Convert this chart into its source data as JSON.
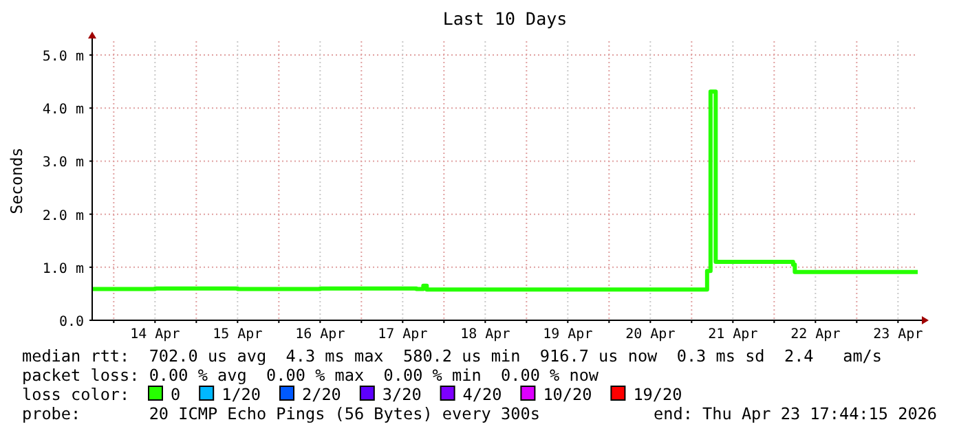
{
  "chart_data": {
    "type": "step",
    "title": "Last 10 Days",
    "ylabel": "Seconds",
    "legend_title": "loss color:",
    "legend": "bottom",
    "grid": true,
    "xlim": [
      "2026-04-13T17:44",
      "2026-04-23T17:44"
    ],
    "xticks": [
      {
        "value": "2026-04-14T00:00",
        "label": null
      },
      {
        "value": "2026-04-14T12:00",
        "label": "14 Apr"
      },
      {
        "value": "2026-04-15T00:00",
        "label": null
      },
      {
        "value": "2026-04-15T12:00",
        "label": "15 Apr"
      },
      {
        "value": "2026-04-16T00:00",
        "label": null
      },
      {
        "value": "2026-04-16T12:00",
        "label": "16 Apr"
      },
      {
        "value": "2026-04-17T00:00",
        "label": null
      },
      {
        "value": "2026-04-17T12:00",
        "label": "17 Apr"
      },
      {
        "value": "2026-04-18T00:00",
        "label": null
      },
      {
        "value": "2026-04-18T12:00",
        "label": "18 Apr"
      },
      {
        "value": "2026-04-19T00:00",
        "label": null
      },
      {
        "value": "2026-04-19T12:00",
        "label": "19 Apr"
      },
      {
        "value": "2026-04-20T00:00",
        "label": null
      },
      {
        "value": "2026-04-20T12:00",
        "label": "20 Apr"
      },
      {
        "value": "2026-04-21T00:00",
        "label": null
      },
      {
        "value": "2026-04-21T12:00",
        "label": "21 Apr"
      },
      {
        "value": "2026-04-22T00:00",
        "label": null
      },
      {
        "value": "2026-04-22T12:00",
        "label": "22 Apr"
      },
      {
        "value": "2026-04-23T00:00",
        "label": null
      },
      {
        "value": "2026-04-23T12:00",
        "label": "23 Apr"
      }
    ],
    "ylim": [
      0,
      5.26
    ],
    "yticks": [
      {
        "value": 0,
        "label": "0.0"
      },
      {
        "value": 1,
        "label": "1.0 m"
      },
      {
        "value": 2,
        "label": "2.0 m"
      },
      {
        "value": 3,
        "label": "3.0 m"
      },
      {
        "value": 4,
        "label": "4.0 m"
      },
      {
        "value": 5,
        "label": "5.0 m"
      }
    ],
    "series": [
      {
        "name": "0",
        "color": "#26ff00",
        "x": [
          "2026-04-13T17:44",
          "2026-04-14T12:00",
          "2026-04-15T12:00",
          "2026-04-16T12:00",
          "2026-04-17T16:00",
          "2026-04-17T18:00",
          "2026-04-17T19:00",
          "2026-04-19T12:00",
          "2026-04-21T04:00",
          "2026-04-21T04:30",
          "2026-04-21T05:30",
          "2026-04-21T07:00",
          "2026-04-22T05:00",
          "2026-04-22T05:30",
          "2026-04-22T06:00",
          "2026-04-23T17:44"
        ],
        "values": [
          0.59,
          0.6,
          0.59,
          0.6,
          0.59,
          0.65,
          0.58,
          0.58,
          0.58,
          0.93,
          4.31,
          1.1,
          1.1,
          1.05,
          0.91,
          0.91
        ]
      },
      {
        "name": "1/20",
        "color": "#00b8ff"
      },
      {
        "name": "2/20",
        "color": "#0059ff"
      },
      {
        "name": "3/20",
        "color": "#5e00ff"
      },
      {
        "name": "4/20",
        "color": "#7e00ff"
      },
      {
        "name": "10/20",
        "color": "#dd00ff"
      },
      {
        "name": "19/20",
        "color": "#ff0000"
      }
    ],
    "annotations": [
      "median rtt:  702.0 us avg  4.3 ms max  580.2 us min  916.7 us now  0.3 ms sd  2.4   am/s",
      "packet loss: 0.00 % avg  0.00 % max  0.00 % min  0.00 % now",
      "probe:       20 ICMP Echo Pings (56 Bytes) every 300s",
      "end: Thu Apr 23 17:44:15 2026"
    ]
  }
}
